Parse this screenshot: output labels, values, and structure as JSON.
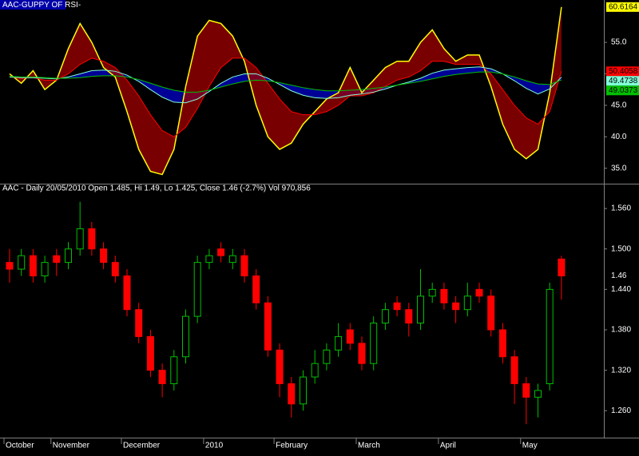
{
  "chart_data": [
    {
      "type": "guppy",
      "title": "AAC-GUPPY OF RSI-",
      "ylim": [
        32.8,
        61.1
      ],
      "yticks": [
        {
          "value": 35,
          "label": "35.0"
        },
        {
          "value": 40,
          "label": "40.0"
        },
        {
          "value": 45,
          "label": "45.0"
        },
        {
          "value": 50,
          "label": "50.0"
        },
        {
          "value": 55,
          "label": "55.0"
        }
      ],
      "grid": false,
      "series": [
        {
          "color": "#ffff00",
          "values": [
            50,
            48.5,
            50.5,
            47.5,
            49,
            54,
            58,
            55,
            51,
            49.5,
            44,
            38,
            34.5,
            34,
            38,
            48,
            56,
            58.5,
            58,
            56,
            52,
            45,
            40,
            38,
            39,
            42,
            44,
            46,
            47,
            51,
            47,
            49,
            51,
            52,
            52,
            55,
            57,
            54,
            52,
            53,
            53,
            48,
            42,
            38,
            36.5,
            38,
            47,
            60.6164
          ]
        },
        {
          "color": "#ff0000",
          "values": [
            49.5,
            49.3,
            49.4,
            49.0,
            49.0,
            50.0,
            51.5,
            52.5,
            52.0,
            51.0,
            49.0,
            46.5,
            43.5,
            41.0,
            40.0,
            41.5,
            44.5,
            48.0,
            51.0,
            52.5,
            52.5,
            51.0,
            48.5,
            46.0,
            44.0,
            43.5,
            43.5,
            44.0,
            45.0,
            46.5,
            46.5,
            47.0,
            48.0,
            49.0,
            49.5,
            50.5,
            52.0,
            52.0,
            51.5,
            51.5,
            51.5,
            50.0,
            47.5,
            45.0,
            43.0,
            42.0,
            44.0,
            50.4058
          ]
        },
        {
          "color": "#80ffd8",
          "values": [
            49.5,
            49.4,
            49.4,
            49.3,
            49.2,
            49.5,
            50.0,
            50.5,
            50.6,
            50.4,
            49.8,
            48.8,
            47.5,
            46.3,
            45.5,
            45.4,
            46.0,
            47.2,
            48.5,
            49.5,
            50.0,
            50.0,
            49.3,
            48.3,
            47.3,
            46.6,
            46.2,
            46.1,
            46.2,
            46.6,
            46.8,
            47.1,
            47.6,
            48.2,
            48.7,
            49.3,
            50.1,
            50.6,
            50.8,
            51.0,
            51.1,
            50.8,
            50.0,
            48.9,
            47.7,
            46.8,
            47.6,
            49.4738
          ]
        },
        {
          "color": "#00c000",
          "values": [
            49.6,
            49.5,
            49.5,
            49.4,
            49.3,
            49.3,
            49.4,
            49.6,
            49.7,
            49.7,
            49.5,
            49.1,
            48.5,
            47.9,
            47.4,
            47.1,
            47.1,
            47.4,
            47.9,
            48.4,
            48.8,
            49.0,
            48.9,
            48.6,
            48.2,
            47.8,
            47.5,
            47.3,
            47.3,
            47.4,
            47.5,
            47.7,
            47.9,
            48.2,
            48.5,
            48.8,
            49.2,
            49.6,
            49.9,
            50.1,
            50.3,
            50.3,
            50.0,
            49.5,
            48.9,
            48.4,
            48.3,
            49.0373
          ]
        }
      ],
      "fast_band_color": "#a00000",
      "slow_band_color": "#0000c8"
    },
    {
      "type": "candlestick",
      "title": "AAC - Daily 20/05/2010 Open 1.485, Hi 1.49, Lo 1.425, Close 1.46 (-2.7%) Vol 970,856",
      "categories": [
        "October",
        null,
        null,
        null,
        "November",
        null,
        null,
        null,
        null,
        null,
        "December",
        null,
        null,
        null,
        null,
        null,
        null,
        "2010",
        null,
        null,
        null,
        null,
        null,
        "February",
        null,
        null,
        null,
        null,
        null,
        null,
        "March",
        null,
        null,
        null,
        null,
        null,
        null,
        "April",
        null,
        null,
        null,
        null,
        null,
        null,
        "May",
        null,
        null,
        null
      ],
      "ylim": [
        1.22,
        1.585
      ],
      "yticks": [
        {
          "value": 1.26,
          "label": "1.260"
        },
        {
          "value": 1.32,
          "label": "1.320"
        },
        {
          "value": 1.38,
          "label": "1.380"
        },
        {
          "value": 1.44,
          "label": "1.440"
        },
        {
          "value": 1.5,
          "label": "1.500"
        },
        {
          "value": 1.56,
          "label": "1.560"
        }
      ],
      "up_color": "#00c000",
      "down_color": "#ff0000",
      "open": [
        1.48,
        1.47,
        1.49,
        1.46,
        1.49,
        1.48,
        1.5,
        1.53,
        1.5,
        1.48,
        1.46,
        1.41,
        1.37,
        1.32,
        1.3,
        1.34,
        1.4,
        1.48,
        1.5,
        1.48,
        1.49,
        1.46,
        1.42,
        1.35,
        1.3,
        1.27,
        1.31,
        1.33,
        1.35,
        1.38,
        1.36,
        1.33,
        1.39,
        1.42,
        1.41,
        1.39,
        1.43,
        1.44,
        1.42,
        1.41,
        1.44,
        1.43,
        1.38,
        1.34,
        1.3,
        1.28,
        1.3,
        1.485
      ],
      "high": [
        1.5,
        1.5,
        1.5,
        1.49,
        1.5,
        1.51,
        1.57,
        1.54,
        1.51,
        1.49,
        1.47,
        1.42,
        1.38,
        1.33,
        1.35,
        1.41,
        1.49,
        1.5,
        1.51,
        1.5,
        1.5,
        1.47,
        1.43,
        1.36,
        1.31,
        1.32,
        1.35,
        1.36,
        1.39,
        1.39,
        1.37,
        1.4,
        1.42,
        1.43,
        1.42,
        1.47,
        1.45,
        1.45,
        1.43,
        1.45,
        1.45,
        1.44,
        1.39,
        1.35,
        1.31,
        1.3,
        1.45,
        1.49
      ],
      "low": [
        1.45,
        1.46,
        1.45,
        1.45,
        1.46,
        1.47,
        1.49,
        1.49,
        1.47,
        1.45,
        1.4,
        1.36,
        1.31,
        1.28,
        1.29,
        1.33,
        1.39,
        1.47,
        1.48,
        1.47,
        1.45,
        1.41,
        1.34,
        1.28,
        1.25,
        1.26,
        1.3,
        1.32,
        1.34,
        1.35,
        1.32,
        1.32,
        1.38,
        1.4,
        1.37,
        1.38,
        1.42,
        1.41,
        1.39,
        1.4,
        1.42,
        1.37,
        1.33,
        1.27,
        1.24,
        1.25,
        1.29,
        1.425
      ],
      "close": [
        1.47,
        1.49,
        1.46,
        1.48,
        1.48,
        1.5,
        1.53,
        1.5,
        1.48,
        1.46,
        1.41,
        1.37,
        1.32,
        1.3,
        1.34,
        1.4,
        1.48,
        1.49,
        1.49,
        1.49,
        1.46,
        1.42,
        1.35,
        1.3,
        1.27,
        1.31,
        1.33,
        1.35,
        1.37,
        1.36,
        1.33,
        1.39,
        1.41,
        1.41,
        1.39,
        1.43,
        1.44,
        1.42,
        1.41,
        1.43,
        1.43,
        1.38,
        1.34,
        1.3,
        1.28,
        1.29,
        1.44,
        1.46
      ]
    }
  ]
}
